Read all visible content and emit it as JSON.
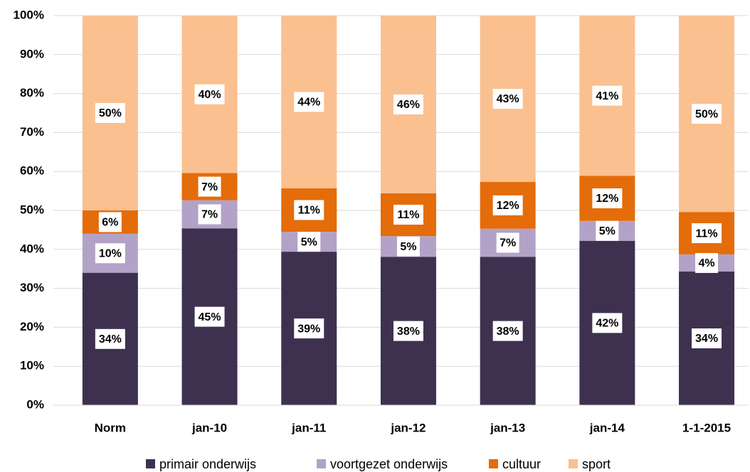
{
  "chart_data": {
    "type": "stacked_bar",
    "categories": [
      "Norm",
      "jan-10",
      "jan-11",
      "jan-12",
      "jan-13",
      "jan-14",
      "1-1-2015"
    ],
    "series": [
      {
        "name": "primair onderwijs",
        "color": "#3e3150",
        "values": [
          34,
          45.4,
          39.4,
          38.1,
          38.1,
          42.2,
          34.3
        ],
        "value_labels": [
          "34%",
          "45%",
          "39%",
          "38%",
          "38%",
          "42%",
          "34%"
        ]
      },
      {
        "name": "voortgezet onderwijs",
        "color": "#b3a2c7",
        "values": [
          10,
          7.2,
          5.1,
          5.3,
          7.2,
          5.1,
          4.4
        ],
        "value_labels": [
          "10%",
          "7%",
          "5%",
          "5%",
          "7%",
          "5%",
          "4%"
        ]
      },
      {
        "name": "cultuur",
        "color": "#e46c0a",
        "values": [
          6,
          7.0,
          11.2,
          11.0,
          12.0,
          11.6,
          10.9
        ],
        "value_labels": [
          "6%",
          "7%",
          "11%",
          "11%",
          "12%",
          "12%",
          "11%"
        ]
      },
      {
        "name": "sport",
        "color": "#fac090",
        "values": [
          50,
          40.4,
          44.3,
          45.6,
          42.7,
          41.1,
          50.4
        ],
        "value_labels": [
          "50%",
          "40%",
          "44%",
          "46%",
          "43%",
          "41%",
          "50%"
        ]
      }
    ],
    "ylim": [
      0,
      100
    ],
    "yticks": [
      {
        "value": 0,
        "label": "0%"
      },
      {
        "value": 10,
        "label": "10%"
      },
      {
        "value": 20,
        "label": "20%"
      },
      {
        "value": 30,
        "label": "30%"
      },
      {
        "value": 40,
        "label": "40%"
      },
      {
        "value": 50,
        "label": "50%"
      },
      {
        "value": 60,
        "label": "60%"
      },
      {
        "value": 70,
        "label": "70%"
      },
      {
        "value": 80,
        "label": "80%"
      },
      {
        "value": 90,
        "label": "90%"
      },
      {
        "value": 100,
        "label": "100%"
      }
    ],
    "grid": true,
    "legend": "bottom"
  }
}
